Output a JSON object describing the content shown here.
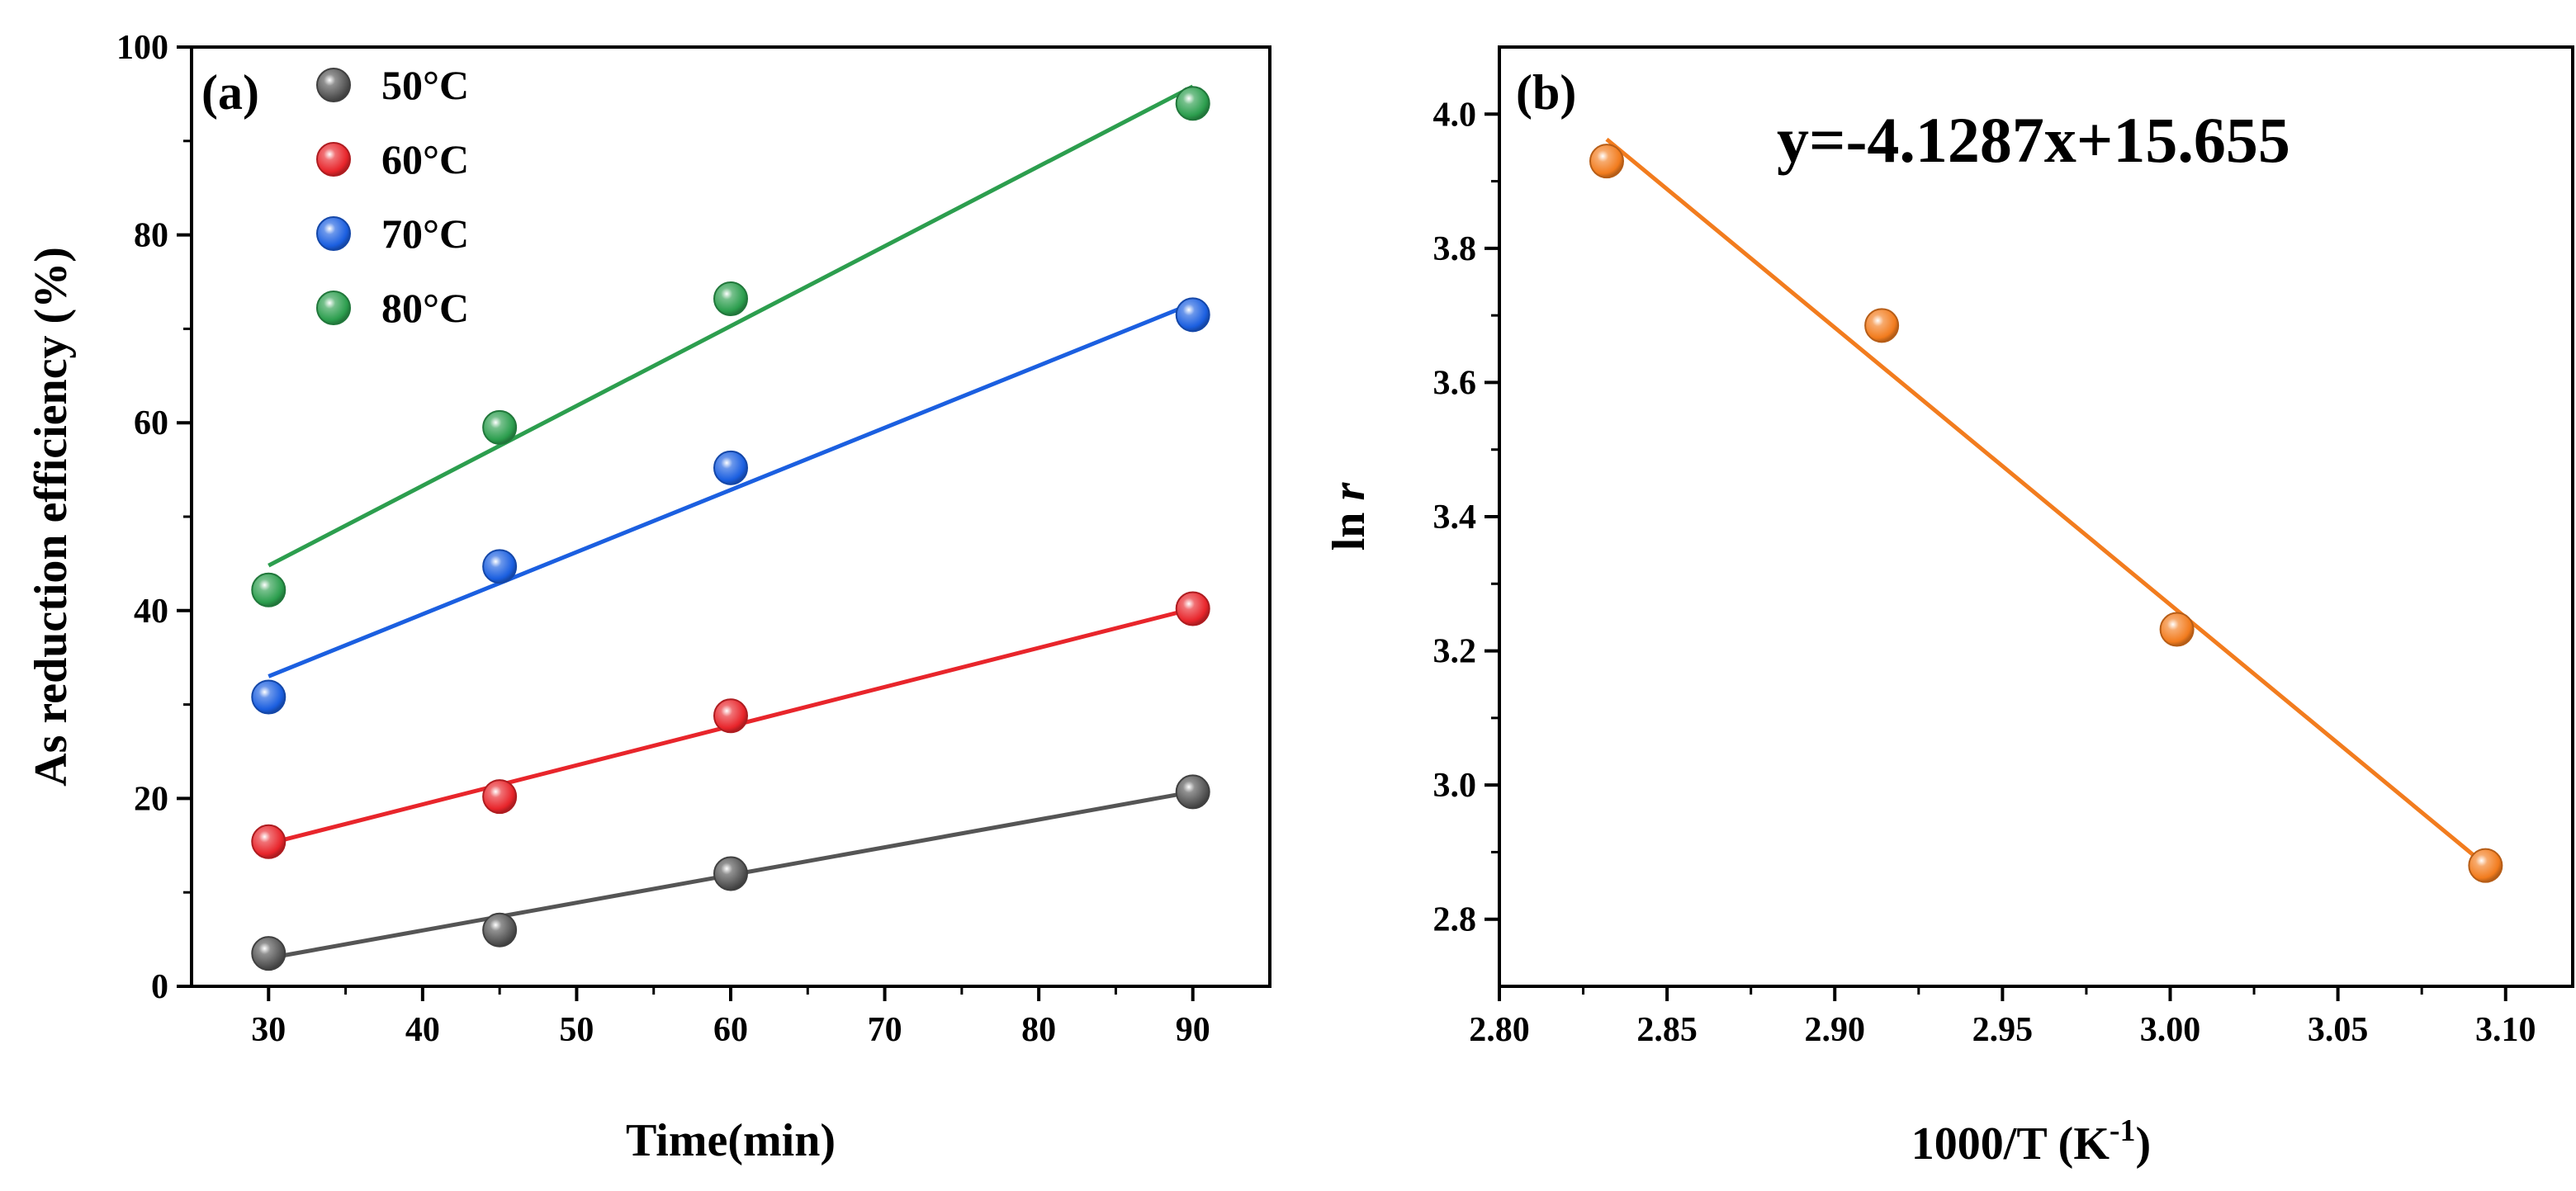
{
  "chart_data": [
    {
      "type": "scatter",
      "panel_label": "(a)",
      "title": "",
      "xlabel": "Time(min)",
      "ylabel": "As reduction efficiency (%)",
      "xlim": [
        25,
        95
      ],
      "ylim": [
        0,
        100
      ],
      "xticks": [
        30,
        40,
        50,
        60,
        70,
        80,
        90
      ],
      "yticks": [
        0,
        20,
        40,
        60,
        80,
        100
      ],
      "x": [
        30,
        45,
        60,
        90
      ],
      "legend_position": "top-left",
      "series": [
        {
          "name": "50°C",
          "color": "#555555",
          "values": [
            3.5,
            6.0,
            12.0,
            20.7
          ],
          "fit": [
            3.0,
            20.7
          ]
        },
        {
          "name": "60°C",
          "color": "#e8252b",
          "values": [
            15.4,
            20.2,
            28.8,
            40.2
          ],
          "fit": [
            15.2,
            40.2
          ]
        },
        {
          "name": "70°C",
          "color": "#1b5fe0",
          "values": [
            30.8,
            44.7,
            55.2,
            71.5
          ],
          "fit": [
            33.0,
            72.7
          ]
        },
        {
          "name": "80°C",
          "color": "#2c9e4e",
          "values": [
            42.2,
            59.5,
            73.2,
            94.0
          ],
          "fit": [
            44.8,
            95.8
          ]
        }
      ]
    },
    {
      "type": "scatter",
      "panel_label": "(b)",
      "title": "",
      "xlabel": "1000/T (K",
      "xlabel_superscript": "-1",
      "xlabel_suffix": ")",
      "ylabel": "ln ",
      "ylabel_italic": "r",
      "xlim": [
        2.8,
        3.12
      ],
      "ylim": [
        2.7,
        4.1
      ],
      "xticks": [
        "2.80",
        "2.85",
        "2.90",
        "2.95",
        "3.00",
        "3.05",
        "3.10"
      ],
      "yticks": [
        "2.8",
        "3.0",
        "3.2",
        "3.4",
        "3.6",
        "3.8",
        "4.0"
      ],
      "annotation": "y=-4.1287x+15.655",
      "series": [
        {
          "name": "ln r",
          "color": "#f27c1e",
          "x": [
            2.832,
            2.914,
            3.002,
            3.094
          ],
          "values": [
            3.93,
            3.685,
            3.232,
            2.88
          ]
        }
      ],
      "fit": {
        "slope": -4.1287,
        "intercept": 15.655,
        "x_range": [
          2.832,
          3.094
        ]
      }
    }
  ]
}
